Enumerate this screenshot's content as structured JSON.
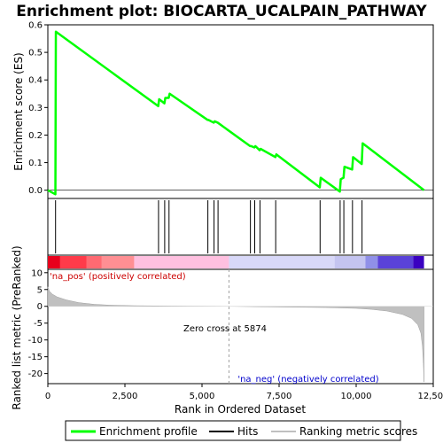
{
  "chart_data": {
    "type": "line",
    "title": "Enrichment plot: BIOCARTA_UCALPAIN_PATHWAY",
    "xlabel": "Rank in Ordered Dataset",
    "xlim": [
      0,
      12500
    ],
    "x_ticks": [
      "0",
      "2,500",
      "5,000",
      "7,500",
      "10,000",
      "12,500"
    ],
    "x_tick_values": [
      0,
      2500,
      5000,
      7500,
      10000,
      12500
    ],
    "panels": {
      "enrichment": {
        "ylabel": "Enrichment score (ES)",
        "ylim": [
          -0.03,
          0.6
        ],
        "y_ticks": [
          "0.0",
          "0.1",
          "0.2",
          "0.3",
          "0.4",
          "0.5",
          "0.6"
        ],
        "y_tick_values": [
          0.0,
          0.1,
          0.2,
          0.3,
          0.4,
          0.5,
          0.6
        ],
        "series": [
          {
            "name": "Enrichment profile",
            "color": "#00ff00",
            "x": [
              0,
              245,
              260,
              3580,
              3610,
              3780,
              3810,
              3920,
              3950,
              5180,
              5210,
              5380,
              5410,
              5510,
              6560,
              6590,
              6700,
              6730,
              6870,
              6900,
              7380,
              7410,
              8820,
              8850,
              9470,
              9500,
              9590,
              9620,
              9870,
              9900,
              10180,
              10210,
              12200
            ],
            "y": [
              0.0,
              -0.015,
              0.575,
              0.305,
              0.33,
              0.315,
              0.335,
              0.335,
              0.35,
              0.255,
              0.255,
              0.245,
              0.25,
              0.245,
              0.16,
              0.16,
              0.155,
              0.16,
              0.145,
              0.15,
              0.12,
              0.13,
              0.01,
              0.045,
              -0.005,
              0.04,
              0.045,
              0.085,
              0.075,
              0.12,
              0.095,
              0.17,
              0.0
            ]
          }
        ]
      },
      "hits": {
        "name": "Hits",
        "positions": [
          250,
          3590,
          3790,
          3930,
          5190,
          5390,
          5520,
          6570,
          6710,
          6880,
          7390,
          8830,
          9480,
          9600,
          9880,
          10190
        ]
      },
      "gradient": {
        "segments": [
          {
            "x0": 0,
            "x1": 400,
            "color": "#e8001c"
          },
          {
            "x0": 400,
            "x1": 1250,
            "color": "#ff3b4a"
          },
          {
            "x0": 1250,
            "x1": 1750,
            "color": "#ff6a72"
          },
          {
            "x0": 1750,
            "x1": 2800,
            "color": "#ff8f93"
          },
          {
            "x0": 2800,
            "x1": 5874,
            "color": "#ffc0e0"
          },
          {
            "x0": 5874,
            "x1": 9300,
            "color": "#d8d8f8"
          },
          {
            "x0": 9300,
            "x1": 10300,
            "color": "#c4c4f0"
          },
          {
            "x0": 10300,
            "x1": 10700,
            "color": "#9090e8"
          },
          {
            "x0": 10700,
            "x1": 11850,
            "color": "#5a42d8"
          },
          {
            "x0": 11850,
            "x1": 12200,
            "color": "#3a00c0"
          }
        ]
      },
      "ranked_metric": {
        "name": "Ranking metric scores",
        "ylabel": "Ranked list metric (PreRanked)",
        "ylim": [
          -23,
          11
        ],
        "y_ticks": [
          "10",
          "5",
          "0",
          "-5",
          "-10",
          "-15",
          "-20"
        ],
        "y_tick_values": [
          10,
          5,
          0,
          -5,
          -10,
          -15,
          -20
        ],
        "x": [
          0,
          50,
          150,
          300,
          600,
          1000,
          1500,
          2000,
          2800,
          4000,
          5874,
          7500,
          9000,
          10000,
          10500,
          11000,
          11500,
          11800,
          12000,
          12100,
          12150,
          12180,
          12200
        ],
        "y": [
          5.8,
          4.5,
          3.6,
          2.8,
          1.9,
          1.1,
          0.6,
          0.35,
          0.18,
          0.08,
          0.0,
          -0.2,
          -0.35,
          -0.6,
          -0.9,
          -1.4,
          -2.4,
          -3.6,
          -5.5,
          -8.0,
          -12.0,
          -17.0,
          -22.5
        ]
      }
    },
    "annotations": {
      "positive": "'na_pos' (positively correlated)",
      "negative": "'na_neg' (negatively correlated)",
      "zero_cross": "Zero cross at 5874",
      "zero_cross_value": 5874
    },
    "legend": {
      "placement": "bottom",
      "items": [
        {
          "label": "Enrichment profile",
          "color": "#00ff00"
        },
        {
          "label": "Hits",
          "color": "#000000"
        },
        {
          "label": "Ranking metric scores",
          "color": "#c0c0c0"
        }
      ]
    }
  }
}
